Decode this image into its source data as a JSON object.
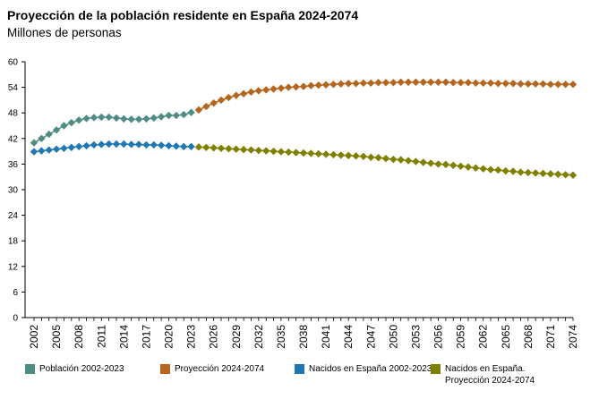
{
  "chart_data": {
    "type": "line",
    "title": "Proyección de la población residente en España 2024-2074",
    "subtitle": "Millones de personas",
    "ylim": [
      0,
      60
    ],
    "yticks": [
      0,
      6,
      12,
      18,
      24,
      30,
      36,
      42,
      48,
      54,
      60
    ],
    "xlim": [
      2002,
      2074
    ],
    "xticks": [
      2002,
      2005,
      2008,
      2011,
      2014,
      2017,
      2020,
      2023,
      2026,
      2029,
      2032,
      2035,
      2038,
      2041,
      2044,
      2047,
      2050,
      2053,
      2056,
      2059,
      2062,
      2065,
      2068,
      2071,
      2074
    ],
    "grid": false,
    "legend_position": "bottom",
    "series": [
      {
        "name": "Población 2002-2023",
        "color": "#4e8c84",
        "x": [
          2002,
          2003,
          2004,
          2005,
          2006,
          2007,
          2008,
          2009,
          2010,
          2011,
          2012,
          2013,
          2014,
          2015,
          2016,
          2017,
          2018,
          2019,
          2020,
          2021,
          2022,
          2023
        ],
        "values": [
          41.0,
          42.0,
          43.0,
          44.0,
          45.0,
          45.7,
          46.3,
          46.7,
          46.9,
          47.0,
          47.0,
          46.8,
          46.6,
          46.5,
          46.5,
          46.6,
          46.8,
          47.1,
          47.4,
          47.4,
          47.6,
          48.1
        ]
      },
      {
        "name": "Proyección 2024-2074",
        "color": "#b5651d",
        "x": [
          2024,
          2025,
          2026,
          2027,
          2028,
          2029,
          2030,
          2031,
          2032,
          2033,
          2034,
          2035,
          2036,
          2037,
          2038,
          2039,
          2040,
          2041,
          2042,
          2043,
          2044,
          2045,
          2046,
          2047,
          2048,
          2049,
          2050,
          2051,
          2052,
          2053,
          2054,
          2055,
          2056,
          2057,
          2058,
          2059,
          2060,
          2061,
          2062,
          2063,
          2064,
          2065,
          2066,
          2067,
          2068,
          2069,
          2070,
          2071,
          2072,
          2073,
          2074
        ],
        "values": [
          48.7,
          49.5,
          50.3,
          51.0,
          51.6,
          52.1,
          52.5,
          52.9,
          53.2,
          53.4,
          53.6,
          53.8,
          54.0,
          54.1,
          54.2,
          54.4,
          54.5,
          54.6,
          54.7,
          54.8,
          54.9,
          54.9,
          55.0,
          55.0,
          55.1,
          55.1,
          55.1,
          55.2,
          55.2,
          55.2,
          55.2,
          55.2,
          55.2,
          55.2,
          55.1,
          55.1,
          55.1,
          55.0,
          55.0,
          55.0,
          54.9,
          54.9,
          54.9,
          54.8,
          54.8,
          54.8,
          54.8,
          54.7,
          54.7,
          54.7,
          54.7
        ]
      },
      {
        "name": "Nacidos en España 2002-2023",
        "color": "#1f77b4",
        "x": [
          2002,
          2003,
          2004,
          2005,
          2006,
          2007,
          2008,
          2009,
          2010,
          2011,
          2012,
          2013,
          2014,
          2015,
          2016,
          2017,
          2018,
          2019,
          2020,
          2021,
          2022,
          2023
        ],
        "values": [
          38.9,
          39.1,
          39.3,
          39.5,
          39.7,
          39.9,
          40.1,
          40.3,
          40.5,
          40.6,
          40.7,
          40.7,
          40.7,
          40.6,
          40.6,
          40.5,
          40.5,
          40.4,
          40.3,
          40.2,
          40.1,
          40.1
        ]
      },
      {
        "name": "Nacidos en España.\nProyección 2024-2074",
        "color": "#808000",
        "x": [
          2024,
          2025,
          2026,
          2027,
          2028,
          2029,
          2030,
          2031,
          2032,
          2033,
          2034,
          2035,
          2036,
          2037,
          2038,
          2039,
          2040,
          2041,
          2042,
          2043,
          2044,
          2045,
          2046,
          2047,
          2048,
          2049,
          2050,
          2051,
          2052,
          2053,
          2054,
          2055,
          2056,
          2057,
          2058,
          2059,
          2060,
          2061,
          2062,
          2063,
          2064,
          2065,
          2066,
          2067,
          2068,
          2069,
          2070,
          2071,
          2072,
          2073,
          2074
        ],
        "values": [
          40.0,
          39.9,
          39.8,
          39.7,
          39.6,
          39.5,
          39.4,
          39.3,
          39.2,
          39.1,
          39.0,
          38.9,
          38.8,
          38.7,
          38.6,
          38.5,
          38.4,
          38.3,
          38.2,
          38.1,
          38.0,
          37.9,
          37.8,
          37.6,
          37.5,
          37.3,
          37.1,
          37.0,
          36.8,
          36.6,
          36.4,
          36.2,
          36.0,
          35.9,
          35.7,
          35.5,
          35.3,
          35.1,
          34.9,
          34.7,
          34.6,
          34.4,
          34.3,
          34.1,
          34.0,
          33.9,
          33.8,
          33.7,
          33.6,
          33.5,
          33.4
        ]
      }
    ]
  }
}
